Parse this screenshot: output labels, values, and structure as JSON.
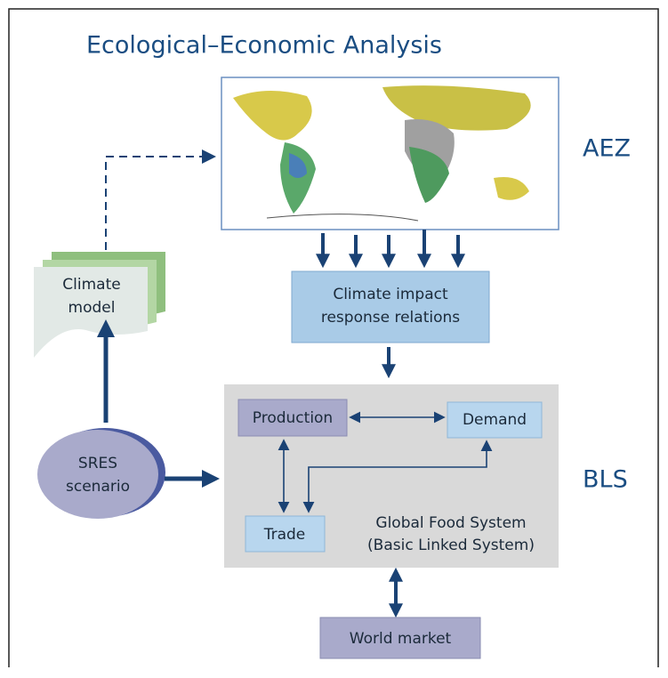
{
  "header": {
    "title": "Ecological–Economic Analysis"
  },
  "sections": {
    "aez": "AEZ",
    "bls": "BLS"
  },
  "nodes": {
    "climate_model": [
      "Climate",
      "model"
    ],
    "sres": [
      "SRES",
      "scenario"
    ],
    "climate_impact": [
      "Climate impact",
      "response relations"
    ],
    "production": "Production",
    "demand": "Demand",
    "trade": "Trade",
    "global_food": [
      "Global Food System",
      "(Basic Linked System)"
    ],
    "world_market": "World market"
  }
}
